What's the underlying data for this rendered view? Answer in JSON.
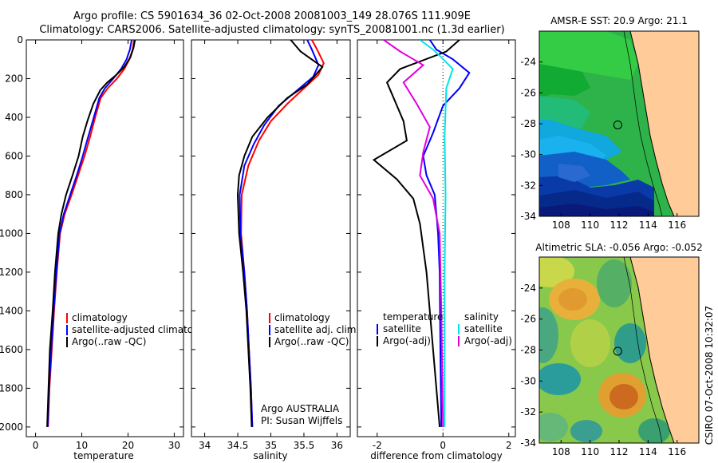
{
  "title_line1": "Argo profile: CS 5901634_36 02-Oct-2008 20081003_149 28.076S 111.909E",
  "title_line2": "Climatology: CARS2006. Satellite-adjusted climatology: synTS_20081001.nc (1.3d earlier)",
  "side_label": "CSIRO 07-Oct-2008 10:32:07",
  "chart_data": [
    {
      "type": "line",
      "id": "temperature",
      "xlabel": "temperature",
      "ylabel": "",
      "xlim": [
        -2,
        32
      ],
      "ylim": [
        0,
        2050
      ],
      "y_reversed": true,
      "xticks": [
        0,
        10,
        20,
        30
      ],
      "yticks": [
        0,
        200,
        400,
        600,
        800,
        1000,
        1200,
        1400,
        1600,
        1800,
        2000
      ],
      "legend": [
        "climatology",
        "satellite-adjusted climatology",
        "Argo(..raw -QC)"
      ],
      "series": [
        {
          "name": "climatology",
          "color": "#ff0000",
          "points": [
            [
              21.3,
              0
            ],
            [
              21.0,
              50
            ],
            [
              20.3,
              100
            ],
            [
              19.2,
              150
            ],
            [
              17.6,
              200
            ],
            [
              15.6,
              250
            ],
            [
              14.1,
              300
            ],
            [
              12.9,
              400
            ],
            [
              11.8,
              500
            ],
            [
              10.6,
              600
            ],
            [
              9.2,
              700
            ],
            [
              7.8,
              800
            ],
            [
              6.3,
              900
            ],
            [
              5.3,
              1000
            ],
            [
              4.6,
              1200
            ],
            [
              4.0,
              1400
            ],
            [
              3.5,
              1600
            ],
            [
              3.0,
              1800
            ],
            [
              2.7,
              2000
            ]
          ]
        },
        {
          "name": "satellite-adjusted climatology",
          "color": "#0000ff",
          "points": [
            [
              20.8,
              0
            ],
            [
              20.4,
              50
            ],
            [
              19.7,
              100
            ],
            [
              18.5,
              150
            ],
            [
              16.8,
              200
            ],
            [
              15.0,
              250
            ],
            [
              13.8,
              300
            ],
            [
              12.6,
              400
            ],
            [
              11.4,
              500
            ],
            [
              10.2,
              600
            ],
            [
              8.9,
              700
            ],
            [
              7.5,
              800
            ],
            [
              6.1,
              900
            ],
            [
              5.2,
              1000
            ],
            [
              4.5,
              1200
            ],
            [
              3.9,
              1400
            ],
            [
              3.4,
              1600
            ],
            [
              2.9,
              1800
            ],
            [
              2.6,
              2000
            ]
          ]
        },
        {
          "name": "Argo(..raw -QC)",
          "color": "#000000",
          "points": [
            [
              21.5,
              0
            ],
            [
              21.2,
              40
            ],
            [
              20.5,
              90
            ],
            [
              19.2,
              140
            ],
            [
              17.5,
              180
            ],
            [
              15.5,
              220
            ],
            [
              14.0,
              260
            ],
            [
              12.5,
              330
            ],
            [
              11.2,
              420
            ],
            [
              10.2,
              500
            ],
            [
              9.3,
              600
            ],
            [
              8.0,
              700
            ],
            [
              6.6,
              800
            ],
            [
              5.6,
              900
            ],
            [
              4.9,
              1000
            ],
            [
              4.2,
              1200
            ],
            [
              3.7,
              1400
            ],
            [
              3.1,
              1600
            ],
            [
              2.8,
              1800
            ],
            [
              2.5,
              2000
            ]
          ]
        }
      ]
    },
    {
      "type": "line",
      "id": "salinity",
      "xlabel": "salinity",
      "xlim": [
        33.8,
        36.2
      ],
      "ylim": [
        0,
        2050
      ],
      "y_reversed": true,
      "xticks": [
        34,
        34.5,
        35,
        35.5,
        36
      ],
      "legend": [
        "climatology",
        "satellite adj. clim.",
        "Argo(..raw -QC)"
      ],
      "annotation": [
        "Argo AUSTRALIA",
        "PI: Susan Wijffels"
      ],
      "series": [
        {
          "name": "climatology",
          "color": "#ff0000",
          "points": [
            [
              35.62,
              0
            ],
            [
              35.7,
              50
            ],
            [
              35.8,
              120
            ],
            [
              35.72,
              180
            ],
            [
              35.5,
              250
            ],
            [
              35.25,
              330
            ],
            [
              35.0,
              420
            ],
            [
              34.82,
              520
            ],
            [
              34.66,
              650
            ],
            [
              34.56,
              800
            ],
            [
              34.55,
              1000
            ],
            [
              34.6,
              1200
            ],
            [
              34.64,
              1400
            ],
            [
              34.67,
              1600
            ],
            [
              34.7,
              1800
            ],
            [
              34.72,
              2000
            ]
          ]
        },
        {
          "name": "satellite adj. clim.",
          "color": "#0000ff",
          "points": [
            [
              35.55,
              0
            ],
            [
              35.62,
              50
            ],
            [
              35.72,
              130
            ],
            [
              35.64,
              190
            ],
            [
              35.4,
              260
            ],
            [
              35.12,
              340
            ],
            [
              34.9,
              440
            ],
            [
              34.74,
              540
            ],
            [
              34.6,
              650
            ],
            [
              34.53,
              800
            ],
            [
              34.54,
              1000
            ],
            [
              34.6,
              1200
            ],
            [
              34.64,
              1400
            ],
            [
              34.67,
              1600
            ],
            [
              34.7,
              1800
            ],
            [
              34.72,
              2000
            ]
          ]
        },
        {
          "name": "Argo(..raw -QC)",
          "color": "#000000",
          "points": [
            [
              35.3,
              0
            ],
            [
              35.45,
              60
            ],
            [
              35.78,
              140
            ],
            [
              35.55,
              230
            ],
            [
              35.25,
              300
            ],
            [
              34.95,
              400
            ],
            [
              34.72,
              500
            ],
            [
              34.6,
              600
            ],
            [
              34.52,
              700
            ],
            [
              34.5,
              800
            ],
            [
              34.52,
              1000
            ],
            [
              34.58,
              1200
            ],
            [
              34.63,
              1400
            ],
            [
              34.66,
              1600
            ],
            [
              34.69,
              1800
            ],
            [
              34.71,
              2000
            ]
          ]
        }
      ]
    },
    {
      "type": "line",
      "id": "difference",
      "xlabel": "difference from climatology",
      "xlim": [
        -2.6,
        2.2
      ],
      "ylim": [
        0,
        2050
      ],
      "y_reversed": true,
      "xticks": [
        -2,
        0,
        2
      ],
      "legend_left_title": "temperature",
      "legend_right_title": "salinity",
      "legend_left": [
        "satellite",
        "Argo(-adj)"
      ],
      "legend_right": [
        "satellite",
        "Argo(-adj)"
      ],
      "series": [
        {
          "name": "temperature satellite",
          "color": "#0000ff",
          "points": [
            [
              -0.4,
              0
            ],
            [
              -0.2,
              50
            ],
            [
              0.3,
              100
            ],
            [
              0.8,
              170
            ],
            [
              0.5,
              250
            ],
            [
              0.0,
              340
            ],
            [
              -0.3,
              480
            ],
            [
              -0.6,
              600
            ],
            [
              -0.5,
              700
            ],
            [
              -0.25,
              800
            ],
            [
              -0.15,
              1000
            ],
            [
              -0.1,
              1200
            ],
            [
              -0.08,
              1600
            ],
            [
              -0.05,
              2000
            ]
          ]
        },
        {
          "name": "temperature Argo(-adj)",
          "color": "#000000",
          "points": [
            [
              0.5,
              0
            ],
            [
              0.1,
              60
            ],
            [
              -1.3,
              150
            ],
            [
              -1.7,
              220
            ],
            [
              -1.5,
              300
            ],
            [
              -1.2,
              420
            ],
            [
              -1.1,
              520
            ],
            [
              -2.1,
              620
            ],
            [
              -1.4,
              720
            ],
            [
              -0.9,
              820
            ],
            [
              -0.7,
              950
            ],
            [
              -0.5,
              1200
            ],
            [
              -0.35,
              1500
            ],
            [
              -0.2,
              1800
            ],
            [
              -0.1,
              2000
            ]
          ]
        },
        {
          "name": "salinity satellite",
          "color": "#00e5e5",
          "points": [
            [
              -0.7,
              0
            ],
            [
              -0.3,
              50
            ],
            [
              -0.05,
              90
            ],
            [
              0.3,
              150
            ],
            [
              0.1,
              250
            ],
            [
              0.05,
              500
            ],
            [
              0.08,
              800
            ],
            [
              0.05,
              1200
            ],
            [
              0.05,
              1600
            ],
            [
              0.05,
              2000
            ]
          ]
        },
        {
          "name": "salinity Argo(-adj)",
          "color": "#e000e0",
          "points": [
            [
              -1.8,
              0
            ],
            [
              -1.3,
              60
            ],
            [
              -0.6,
              130
            ],
            [
              -1.2,
              220
            ],
            [
              -0.8,
              330
            ],
            [
              -0.4,
              450
            ],
            [
              -0.6,
              580
            ],
            [
              -0.7,
              700
            ],
            [
              -0.3,
              820
            ],
            [
              -0.1,
              1000
            ],
            [
              -0.05,
              1400
            ],
            [
              0.0,
              2000
            ]
          ]
        }
      ]
    },
    {
      "type": "heatmap",
      "id": "sst_map",
      "title": "AMSR-E SST: 20.9 Argo: 21.1",
      "xlim": [
        106.5,
        117.5
      ],
      "ylim": [
        -34,
        -22
      ],
      "xticks": [
        108,
        110,
        112,
        114,
        116
      ],
      "yticks": [
        -24,
        -26,
        -28,
        -30,
        -32,
        -34
      ],
      "float": [
        111.909,
        -28.076
      ]
    },
    {
      "type": "heatmap",
      "id": "sla_map",
      "title": "Altimetric SLA: -0.056 Argo: -0.052",
      "xlim": [
        106.5,
        117.5
      ],
      "ylim": [
        -34,
        -22
      ],
      "xticks": [
        108,
        110,
        112,
        114,
        116
      ],
      "yticks": [
        -24,
        -26,
        -28,
        -30,
        -32,
        -34
      ],
      "float": [
        111.909,
        -28.076
      ]
    }
  ]
}
